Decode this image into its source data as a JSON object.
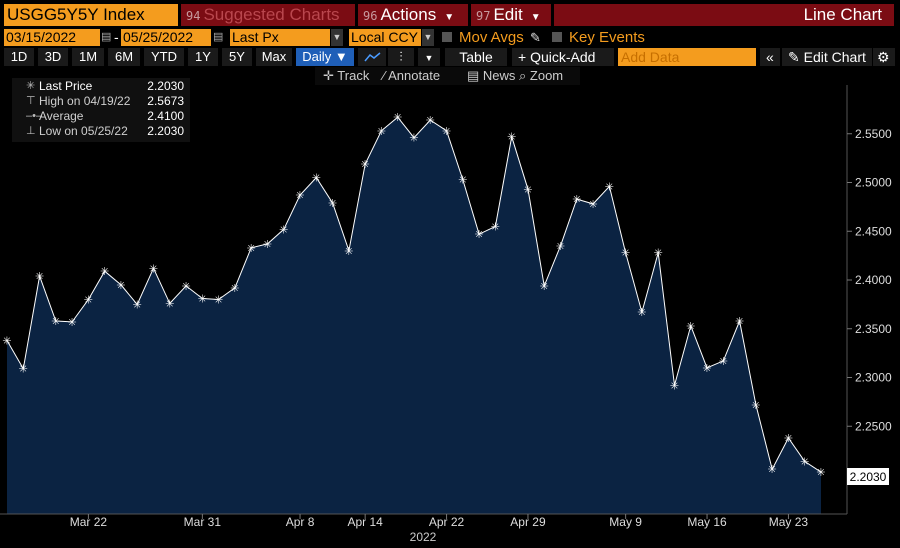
{
  "header": {
    "ticker": "USGG5Y5Y Index",
    "suggested": {
      "num": "94",
      "label": "Suggested Charts"
    },
    "actions": {
      "num": "96",
      "label": "Actions"
    },
    "edit": {
      "num": "97",
      "label": "Edit"
    },
    "chart_kind": "Line Chart"
  },
  "controls": {
    "start_date": "03/15/2022",
    "end_date": "05/25/2022",
    "date_sep": "-",
    "field": "Last Px",
    "currency": "Local CCY",
    "mov_avgs": "Mov Avgs",
    "key_events": "Key Events"
  },
  "periods": [
    "1D",
    "3D",
    "1M",
    "6M",
    "YTD",
    "1Y",
    "5Y",
    "Max"
  ],
  "frequency": "Daily",
  "toolbar": {
    "table": "Table",
    "quick_add": "Quick-Add",
    "add_data_placeholder": "Add Data",
    "edit_chart": "Edit Chart"
  },
  "tools": {
    "track": "Track",
    "annotate": "Annotate",
    "news": "News",
    "zoom": "Zoom"
  },
  "legend": {
    "rows": [
      {
        "key": "Last Price",
        "value": "2.2030"
      },
      {
        "key": "High on 04/19/22",
        "value": "2.5673"
      },
      {
        "key": "Average",
        "value": "2.4100"
      },
      {
        "key": "Low on 05/25/22",
        "value": "2.2030"
      }
    ]
  },
  "colors": {
    "area_fill": "#0b2342",
    "line": "#ffffff",
    "accent": "#f49c1e",
    "header_red": "#7b0c13"
  },
  "chart_data": {
    "type": "area",
    "x": [
      "2022-03-15",
      "2022-03-16",
      "2022-03-17",
      "2022-03-18",
      "2022-03-21",
      "2022-03-22",
      "2022-03-23",
      "2022-03-24",
      "2022-03-25",
      "2022-03-28",
      "2022-03-29",
      "2022-03-30",
      "2022-03-31",
      "2022-04-01",
      "2022-04-04",
      "2022-04-05",
      "2022-04-06",
      "2022-04-07",
      "2022-04-08",
      "2022-04-11",
      "2022-04-12",
      "2022-04-13",
      "2022-04-14",
      "2022-04-18",
      "2022-04-19",
      "2022-04-20",
      "2022-04-21",
      "2022-04-22",
      "2022-04-25",
      "2022-04-26",
      "2022-04-27",
      "2022-04-28",
      "2022-04-29",
      "2022-05-02",
      "2022-05-03",
      "2022-05-04",
      "2022-05-05",
      "2022-05-06",
      "2022-05-09",
      "2022-05-10",
      "2022-05-11",
      "2022-05-12",
      "2022-05-13",
      "2022-05-16",
      "2022-05-17",
      "2022-05-18",
      "2022-05-19",
      "2022-05-20",
      "2022-05-23",
      "2022-05-24",
      "2022-05-25"
    ],
    "series": [
      {
        "values": [
          2.338,
          2.309,
          2.404,
          2.358,
          2.357,
          2.38,
          2.409,
          2.395,
          2.375,
          2.412,
          2.376,
          2.394,
          2.381,
          2.38,
          2.392,
          2.433,
          2.437,
          2.452,
          2.487,
          2.505,
          2.479,
          2.43,
          2.519,
          2.553,
          2.567,
          2.546,
          2.564,
          2.553,
          2.503,
          2.447,
          2.455,
          2.547,
          2.493,
          2.394,
          2.435,
          2.483,
          2.478,
          2.496,
          2.428,
          2.367,
          2.428,
          2.292,
          2.353,
          2.31,
          2.317,
          2.358,
          2.272,
          2.206,
          2.238,
          2.214,
          2.203
        ]
      }
    ],
    "y_ticks": [
      "2.2500",
      "2.3000",
      "2.3500",
      "2.4000",
      "2.4500",
      "2.5000",
      "2.5500"
    ],
    "ylim": [
      2.16,
      2.6
    ],
    "x_ticks": [
      {
        "date": "2022-03-22",
        "label": "Mar 22"
      },
      {
        "date": "2022-03-31",
        "label": "Mar 31"
      },
      {
        "date": "2022-04-08",
        "label": "Apr 8"
      },
      {
        "date": "2022-04-14",
        "label": "Apr 14"
      },
      {
        "date": "2022-04-22",
        "label": "Apr 22"
      },
      {
        "date": "2022-04-29",
        "label": "Apr 29"
      },
      {
        "date": "2022-05-09",
        "label": "May 9"
      },
      {
        "date": "2022-05-16",
        "label": "May 16"
      },
      {
        "date": "2022-05-23",
        "label": "May 23"
      }
    ],
    "year_label": "2022",
    "last_value_label": "2.2030",
    "grid": false
  }
}
